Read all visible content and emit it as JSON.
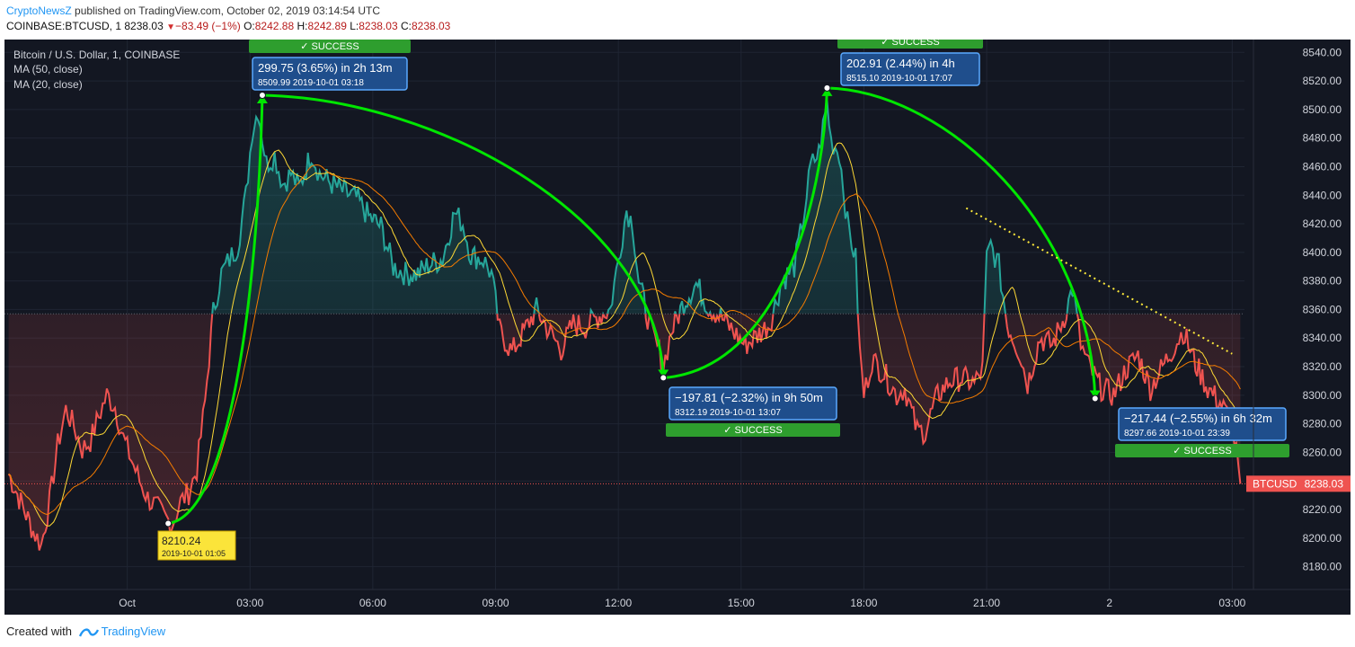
{
  "header": {
    "publisher": "CryptoNewsZ",
    "published_text": " published on TradingView.com, October 02, 2019 03:14:54 UTC",
    "symbol": "COINBASE:BTCUSD, 1",
    "last": "8238.03",
    "change": "−83.49 (−1%)",
    "o_label": "O:",
    "o_val": "8242.88",
    "h_label": "H:",
    "h_val": "8242.89",
    "l_label": "L:",
    "l_val": "8238.03",
    "c_label": "C:",
    "c_val": "8238.03"
  },
  "legend": {
    "title": "Bitcoin / U.S. Dollar, 1, COINBASE",
    "ma50": "MA (50, close)",
    "ma20": "MA (20, close)"
  },
  "footer": {
    "created_with": "Created with",
    "brand": "TradingView"
  },
  "chart_data": {
    "type": "line",
    "x_ticks": [
      "Oct",
      "03:00",
      "06:00",
      "09:00",
      "12:00",
      "15:00",
      "18:00",
      "21:00",
      "2",
      "03:00"
    ],
    "y_ticks": [
      8180,
      8200,
      8220,
      8240,
      8260,
      8280,
      8300,
      8320,
      8340,
      8360,
      8380,
      8400,
      8420,
      8440,
      8460,
      8480,
      8500,
      8520,
      8540
    ],
    "y_range": [
      8164,
      8549
    ],
    "x_range_hours": [
      -3.0,
      27.3
    ],
    "baseline": 8357,
    "series": [
      {
        "points": [
          [
            -2.9,
            8245
          ],
          [
            -2.6,
            8225
          ],
          [
            -2.3,
            8205
          ],
          [
            -2.1,
            8195
          ],
          [
            -1.9,
            8225
          ],
          [
            -1.7,
            8265
          ],
          [
            -1.5,
            8290
          ],
          [
            -1.3,
            8278
          ],
          [
            -1.1,
            8262
          ],
          [
            -0.9,
            8268
          ],
          [
            -0.7,
            8285
          ],
          [
            -0.5,
            8300
          ],
          [
            -0.3,
            8292
          ],
          [
            -0.1,
            8270
          ],
          [
            0.1,
            8255
          ],
          [
            0.3,
            8240
          ],
          [
            0.5,
            8228
          ],
          [
            0.7,
            8222
          ],
          [
            0.9,
            8215
          ],
          [
            1.1,
            8210
          ],
          [
            1.3,
            8225
          ],
          [
            1.5,
            8232
          ],
          [
            1.7,
            8248
          ],
          [
            1.9,
            8295
          ],
          [
            2.1,
            8358
          ],
          [
            2.3,
            8385
          ],
          [
            2.5,
            8395
          ],
          [
            2.7,
            8405
          ],
          [
            2.9,
            8440
          ],
          [
            3.05,
            8485
          ],
          [
            3.2,
            8500
          ],
          [
            3.4,
            8462
          ],
          [
            3.6,
            8468
          ],
          [
            3.8,
            8448
          ],
          [
            4.0,
            8455
          ],
          [
            4.2,
            8445
          ],
          [
            4.5,
            8470
          ],
          [
            4.7,
            8455
          ],
          [
            5.0,
            8448
          ],
          [
            5.3,
            8442
          ],
          [
            5.6,
            8438
          ],
          [
            5.9,
            8425
          ],
          [
            6.2,
            8418
          ],
          [
            6.5,
            8390
          ],
          [
            6.8,
            8385
          ],
          [
            7.1,
            8385
          ],
          [
            7.4,
            8392
          ],
          [
            7.7,
            8395
          ],
          [
            8.0,
            8428
          ],
          [
            8.2,
            8420
          ],
          [
            8.4,
            8398
          ],
          [
            8.7,
            8395
          ],
          [
            8.9,
            8385
          ],
          [
            9.1,
            8345
          ],
          [
            9.4,
            8330
          ],
          [
            9.7,
            8345
          ],
          [
            10.0,
            8360
          ],
          [
            10.3,
            8345
          ],
          [
            10.6,
            8332
          ],
          [
            10.9,
            8350
          ],
          [
            11.2,
            8348
          ],
          [
            11.5,
            8355
          ],
          [
            11.8,
            8360
          ],
          [
            12.0,
            8395
          ],
          [
            12.2,
            8430
          ],
          [
            12.35,
            8420
          ],
          [
            12.5,
            8380
          ],
          [
            12.8,
            8345
          ],
          [
            13.0,
            8330
          ],
          [
            13.1,
            8320
          ],
          [
            13.3,
            8345
          ],
          [
            13.6,
            8365
          ],
          [
            13.9,
            8378
          ],
          [
            14.2,
            8362
          ],
          [
            14.5,
            8355
          ],
          [
            14.8,
            8345
          ],
          [
            15.1,
            8335
          ],
          [
            15.4,
            8342
          ],
          [
            15.7,
            8350
          ],
          [
            16.0,
            8380
          ],
          [
            16.3,
            8390
          ],
          [
            16.5,
            8420
          ],
          [
            16.7,
            8460
          ],
          [
            16.9,
            8470
          ],
          [
            17.1,
            8505
          ],
          [
            17.2,
            8478
          ],
          [
            17.4,
            8470
          ],
          [
            17.6,
            8420
          ],
          [
            17.8,
            8395
          ],
          [
            17.9,
            8330
          ],
          [
            18.0,
            8300
          ],
          [
            18.2,
            8325
          ],
          [
            18.5,
            8315
          ],
          [
            18.8,
            8300
          ],
          [
            19.0,
            8305
          ],
          [
            19.3,
            8275
          ],
          [
            19.5,
            8275
          ],
          [
            19.8,
            8300
          ],
          [
            20.1,
            8310
          ],
          [
            20.4,
            8312
          ],
          [
            20.7,
            8308
          ],
          [
            20.9,
            8318
          ],
          [
            21.0,
            8395
          ],
          [
            21.1,
            8405
          ],
          [
            21.3,
            8390
          ],
          [
            21.5,
            8350
          ],
          [
            21.8,
            8330
          ],
          [
            22.0,
            8308
          ],
          [
            22.3,
            8340
          ],
          [
            22.6,
            8335
          ],
          [
            22.9,
            8355
          ],
          [
            23.1,
            8375
          ],
          [
            23.3,
            8335
          ],
          [
            23.5,
            8320
          ],
          [
            23.8,
            8305
          ],
          [
            24.1,
            8300
          ],
          [
            24.4,
            8318
          ],
          [
            24.7,
            8328
          ],
          [
            25.0,
            8305
          ],
          [
            25.3,
            8320
          ],
          [
            25.6,
            8335
          ],
          [
            25.8,
            8345
          ],
          [
            26.1,
            8322
          ],
          [
            26.4,
            8305
          ],
          [
            26.7,
            8295
          ],
          [
            27.0,
            8280
          ],
          [
            27.2,
            8238
          ]
        ]
      }
    ],
    "annotations": [
      {
        "text": "299.75 (3.65%) in 2h 13m",
        "sub": "8509.99  2019-10-01  03:18",
        "badge": "SUCCESS"
      },
      {
        "text": "−197.81 (−2.32%) in 9h 50m",
        "sub": "8312.19  2019-10-01  13:07",
        "badge": "SUCCESS"
      },
      {
        "text": "202.91 (2.44%) in 4h",
        "sub": "8515.10  2019-10-01  17:07",
        "badge": "SUCCESS"
      },
      {
        "text": "−217.44 (−2.55%) in 6h 32m",
        "sub": "8297.66  2019-10-01  23:39",
        "badge": "SUCCESS"
      },
      {
        "text": "8210.24",
        "sub": "2019-10-01 01:05"
      }
    ],
    "current_price_label": "BTCUSD",
    "current_price": "8238.03",
    "colors": {
      "up": "#26a69a",
      "down": "#ef5350",
      "ma50": "#f57c00",
      "ma20": "#fdd835",
      "projection": "#00e600",
      "trend": "#ffeb3b",
      "box": "#1f4e8c"
    }
  }
}
